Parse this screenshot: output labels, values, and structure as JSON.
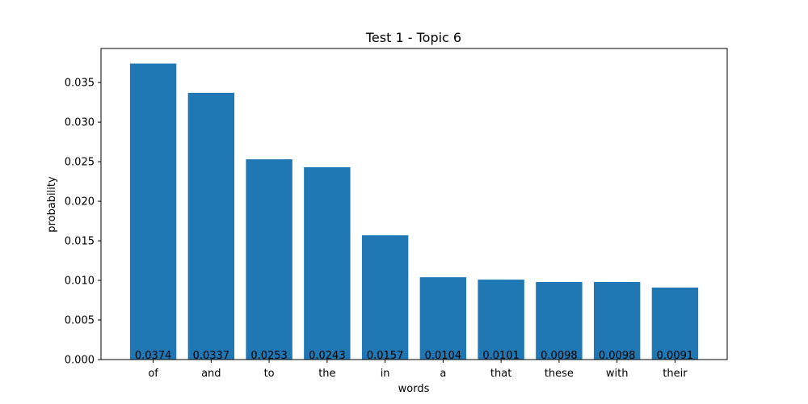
{
  "chart_data": {
    "type": "bar",
    "title": "Test 1 - Topic 6",
    "xlabel": "words",
    "ylabel": "probability",
    "categories": [
      "of",
      "and",
      "to",
      "the",
      "in",
      "a",
      "that",
      "these",
      "with",
      "their"
    ],
    "values": [
      0.0374,
      0.0337,
      0.0253,
      0.0243,
      0.0157,
      0.0104,
      0.0101,
      0.0098,
      0.0098,
      0.0091
    ],
    "value_labels": [
      "0.0374",
      "0.0337",
      "0.0253",
      "0.0243",
      "0.0157",
      "0.0104",
      "0.0101",
      "0.0098",
      "0.0098",
      "0.0091"
    ],
    "yticks": [
      0.0,
      0.005,
      0.01,
      0.015,
      0.02,
      0.025,
      0.03,
      0.035
    ],
    "ytick_labels": [
      "0.000",
      "0.005",
      "0.010",
      "0.015",
      "0.020",
      "0.025",
      "0.030",
      "0.035"
    ],
    "ylim": [
      0,
      0.0393
    ],
    "bar_color": "#1f77b4",
    "grid": false,
    "legend": "none"
  }
}
